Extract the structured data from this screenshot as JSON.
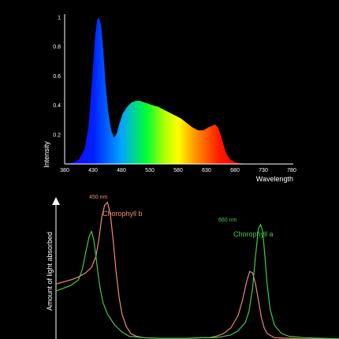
{
  "chart_data": [
    {
      "type": "area",
      "xlabel": "Wavelength",
      "ylabel": "Intensity",
      "xlim": [
        380,
        780
      ],
      "ylim": [
        0,
        1
      ],
      "x_ticks": [
        "380",
        "430",
        "480",
        "530",
        "580",
        "630",
        "680",
        "730",
        "780"
      ],
      "y_ticks": [
        "0.2",
        "0.4",
        "0.6",
        "0.8",
        "1"
      ],
      "grid": false,
      "fill": "visible-spectrum gradient",
      "x": [
        380,
        395,
        405,
        415,
        422,
        428,
        433,
        437,
        440,
        444,
        448,
        452,
        457,
        462,
        467,
        472,
        477,
        482,
        490,
        498,
        505,
        513,
        520,
        528,
        536,
        545,
        555,
        565,
        575,
        585,
        595,
        605,
        615,
        625,
        633,
        640,
        645,
        650,
        655,
        660,
        664,
        668,
        672,
        676,
        682,
        690,
        700,
        715,
        730,
        750,
        780
      ],
      "values": [
        0.0,
        0.01,
        0.03,
        0.1,
        0.25,
        0.55,
        0.85,
        0.98,
        1.0,
        0.95,
        0.78,
        0.55,
        0.35,
        0.23,
        0.18,
        0.21,
        0.28,
        0.34,
        0.39,
        0.42,
        0.43,
        0.43,
        0.42,
        0.41,
        0.4,
        0.39,
        0.37,
        0.35,
        0.33,
        0.31,
        0.28,
        0.25,
        0.23,
        0.23,
        0.25,
        0.26,
        0.27,
        0.25,
        0.2,
        0.13,
        0.08,
        0.05,
        0.03,
        0.02,
        0.01,
        0.005,
        0.002,
        0.001,
        0.0,
        0.0,
        0.0
      ]
    },
    {
      "type": "line",
      "ylabel": "Amount of light absorbed",
      "xlim": [
        380,
        780
      ],
      "ylim": [
        0,
        1
      ],
      "series": [
        {
          "name": "Chorophyll b",
          "peak_label": "450 nm",
          "color": "#f08a72",
          "x": [
            380,
            400,
            410,
            420,
            428,
            434,
            438,
            442,
            446,
            450,
            454,
            458,
            462,
            466,
            470,
            476,
            482,
            490,
            500,
            520,
            540,
            560,
            580,
            590,
            600,
            610,
            620,
            630,
            636,
            642,
            646,
            650,
            654,
            658,
            662,
            666,
            670,
            680,
            700,
            720,
            780
          ],
          "values": [
            0.4,
            0.43,
            0.45,
            0.48,
            0.52,
            0.6,
            0.72,
            0.88,
            0.97,
            0.99,
            0.9,
            0.7,
            0.48,
            0.3,
            0.18,
            0.09,
            0.04,
            0.02,
            0.01,
            0.005,
            0.005,
            0.005,
            0.01,
            0.01,
            0.02,
            0.04,
            0.08,
            0.17,
            0.28,
            0.42,
            0.49,
            0.48,
            0.4,
            0.28,
            0.16,
            0.08,
            0.04,
            0.01,
            0.005,
            0.0,
            0.0
          ]
        },
        {
          "name": "Chorophyll a",
          "peak_label": "660 nm",
          "color": "#46c84e",
          "x": [
            380,
            400,
            410,
            415,
            420,
            425,
            428,
            431,
            434,
            437,
            440,
            444,
            450,
            460,
            470,
            480,
            500,
            520,
            540,
            560,
            580,
            600,
            620,
            630,
            640,
            645,
            650,
            654,
            658,
            661,
            664,
            667,
            670,
            674,
            680,
            690,
            700,
            720,
            780
          ],
          "values": [
            0.35,
            0.39,
            0.43,
            0.5,
            0.63,
            0.75,
            0.78,
            0.72,
            0.6,
            0.47,
            0.36,
            0.26,
            0.18,
            0.1,
            0.05,
            0.02,
            0.01,
            0.005,
            0.005,
            0.005,
            0.01,
            0.01,
            0.03,
            0.06,
            0.12,
            0.2,
            0.37,
            0.6,
            0.8,
            0.83,
            0.78,
            0.6,
            0.4,
            0.22,
            0.1,
            0.04,
            0.02,
            0.01,
            0.0
          ]
        }
      ]
    }
  ]
}
